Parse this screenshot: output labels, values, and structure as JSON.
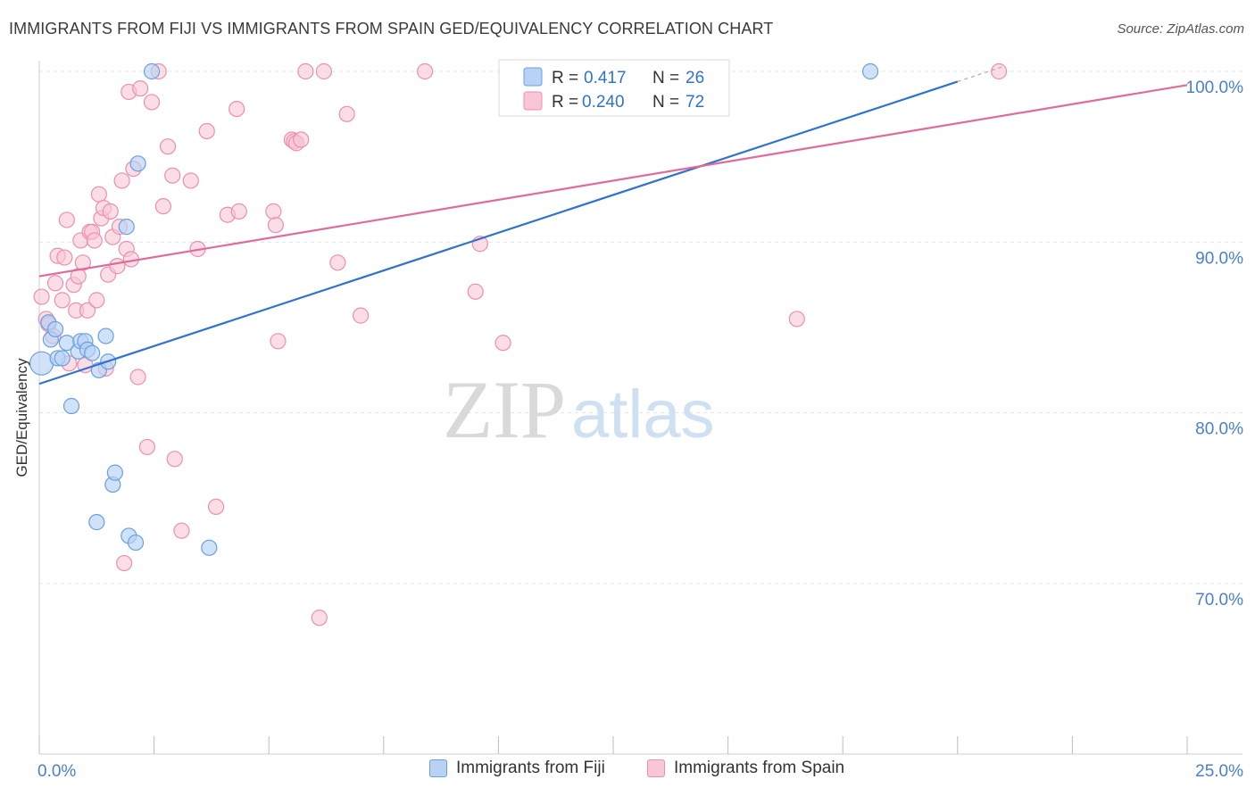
{
  "header": {
    "title": "IMMIGRANTS FROM FIJI VS IMMIGRANTS FROM SPAIN GED/EQUIVALENCY CORRELATION CHART",
    "source": "Source: ZipAtlas.com"
  },
  "watermark": {
    "zip": "ZIP",
    "atlas": "atlas"
  },
  "colors": {
    "fiji_fill": "#b7d2f5",
    "fiji_stroke": "#6a9fe0",
    "fiji_line": "#2f72d0",
    "spain_fill": "#f8c6d6",
    "spain_stroke": "#ec8fb0",
    "spain_line": "#e06a98",
    "axis_label": "#4a7fd0",
    "grid": "#e4e4e4"
  },
  "chart_data": {
    "type": "scatter",
    "title": "IMMIGRANTS FROM FIJI VS IMMIGRANTS FROM SPAIN GED/EQUIVALENCY CORRELATION CHART",
    "xlabel": "",
    "ylabel": "GED/Equivalency",
    "xlim": [
      0,
      25
    ],
    "ylim": [
      60,
      101
    ],
    "x_tick_labels": [
      {
        "value": 0,
        "label": "0.0%"
      },
      {
        "value": 25,
        "label": "25.0%"
      }
    ],
    "y_tick_labels": [
      {
        "value": 70,
        "label": "70.0%"
      },
      {
        "value": 80,
        "label": "80.0%"
      },
      {
        "value": 90,
        "label": "90.0%"
      },
      {
        "value": 100,
        "label": "100.0%"
      }
    ],
    "legend": [
      {
        "name": "Immigrants from Fiji",
        "r_label": "R =",
        "r_value": "0.417",
        "n_label": "N =",
        "n_value": "26"
      },
      {
        "name": "Immigrants from Spain",
        "r_label": "R =",
        "r_value": "0.240",
        "n_label": "N =",
        "n_value": "72"
      }
    ],
    "series": [
      {
        "name": "Immigrants from Fiji",
        "points": [
          [
            0.05,
            82.9
          ],
          [
            0.2,
            85.3
          ],
          [
            0.25,
            84.3
          ],
          [
            0.35,
            84.9
          ],
          [
            0.4,
            83.2
          ],
          [
            0.5,
            83.2
          ],
          [
            0.6,
            84.1
          ],
          [
            0.7,
            80.4
          ],
          [
            0.85,
            83.6
          ],
          [
            0.9,
            84.2
          ],
          [
            1.0,
            84.2
          ],
          [
            1.05,
            83.7
          ],
          [
            1.15,
            83.5
          ],
          [
            1.3,
            82.5
          ],
          [
            1.45,
            84.5
          ],
          [
            1.5,
            83.0
          ],
          [
            1.6,
            75.8
          ],
          [
            1.65,
            76.5
          ],
          [
            1.25,
            73.6
          ],
          [
            1.9,
            90.9
          ],
          [
            1.95,
            72.8
          ],
          [
            2.1,
            72.4
          ],
          [
            2.15,
            94.6
          ],
          [
            2.45,
            100.0
          ],
          [
            3.7,
            72.1
          ],
          [
            18.1,
            100.0
          ]
        ],
        "trend": [
          [
            0,
            81.7
          ],
          [
            20.0,
            99.4
          ]
        ]
      },
      {
        "name": "Immigrants from Spain",
        "points": [
          [
            0.05,
            86.8
          ],
          [
            0.15,
            85.5
          ],
          [
            0.2,
            85.2
          ],
          [
            0.3,
            84.5
          ],
          [
            0.35,
            87.6
          ],
          [
            0.4,
            89.2
          ],
          [
            0.5,
            86.6
          ],
          [
            0.55,
            89.1
          ],
          [
            0.6,
            91.3
          ],
          [
            0.65,
            82.9
          ],
          [
            0.75,
            87.5
          ],
          [
            0.8,
            86.0
          ],
          [
            0.85,
            88.0
          ],
          [
            0.9,
            90.1
          ],
          [
            0.95,
            88.8
          ],
          [
            1.0,
            82.8
          ],
          [
            1.05,
            86.0
          ],
          [
            1.1,
            90.6
          ],
          [
            1.15,
            90.6
          ],
          [
            1.2,
            90.1
          ],
          [
            1.25,
            86.6
          ],
          [
            1.3,
            92.8
          ],
          [
            1.35,
            91.4
          ],
          [
            1.4,
            92.0
          ],
          [
            1.45,
            82.6
          ],
          [
            1.5,
            88.1
          ],
          [
            1.55,
            91.8
          ],
          [
            1.6,
            90.3
          ],
          [
            1.7,
            88.6
          ],
          [
            1.75,
            90.9
          ],
          [
            1.8,
            93.6
          ],
          [
            1.85,
            71.2
          ],
          [
            1.9,
            89.6
          ],
          [
            1.95,
            98.8
          ],
          [
            2.0,
            89.0
          ],
          [
            2.05,
            94.3
          ],
          [
            2.15,
            82.1
          ],
          [
            2.2,
            99.0
          ],
          [
            2.35,
            78.0
          ],
          [
            2.45,
            98.2
          ],
          [
            2.6,
            100.0
          ],
          [
            2.7,
            92.1
          ],
          [
            2.8,
            95.6
          ],
          [
            2.9,
            93.9
          ],
          [
            2.95,
            77.3
          ],
          [
            3.1,
            73.1
          ],
          [
            3.3,
            93.6
          ],
          [
            3.45,
            89.6
          ],
          [
            3.65,
            96.5
          ],
          [
            3.85,
            74.5
          ],
          [
            4.1,
            91.6
          ],
          [
            4.3,
            97.8
          ],
          [
            4.35,
            91.8
          ],
          [
            5.1,
            91.8
          ],
          [
            5.15,
            91.0
          ],
          [
            5.2,
            84.2
          ],
          [
            5.5,
            96.0
          ],
          [
            5.55,
            95.9
          ],
          [
            5.6,
            95.8
          ],
          [
            5.7,
            96.0
          ],
          [
            5.8,
            100.0
          ],
          [
            6.1,
            68.0
          ],
          [
            6.2,
            100.0
          ],
          [
            6.5,
            88.8
          ],
          [
            6.7,
            97.5
          ],
          [
            7.0,
            85.7
          ],
          [
            8.4,
            100.0
          ],
          [
            9.5,
            87.1
          ],
          [
            9.6,
            89.9
          ],
          [
            10.1,
            84.1
          ],
          [
            16.5,
            85.5
          ],
          [
            20.9,
            100.0
          ]
        ],
        "trend": [
          [
            0,
            88.0
          ],
          [
            25.0,
            99.2
          ]
        ]
      }
    ]
  },
  "bottom_legend": {
    "fiji_label": "Immigrants from Fiji",
    "spain_label": "Immigrants from Spain"
  }
}
